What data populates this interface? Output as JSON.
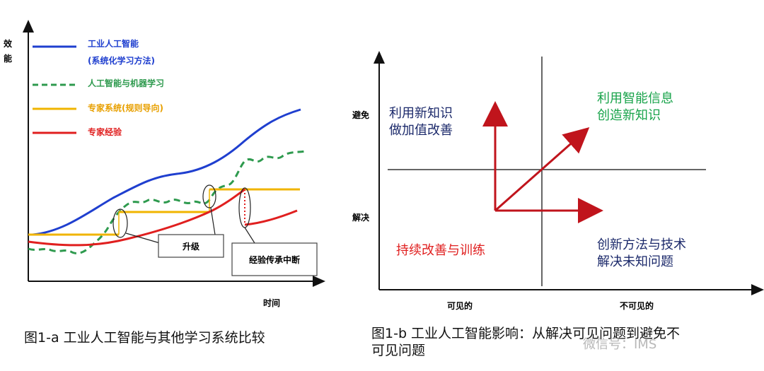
{
  "left_diagram": {
    "y_axis_label": [
      "效",
      "能"
    ],
    "x_axis_label": "时间",
    "legend": [
      {
        "label": "工业人工智能",
        "sublabel": "(系统化学习方法)",
        "color": "#1f3fcf",
        "style": "solid"
      },
      {
        "label": "人工智能与机器学习",
        "color": "#2e9a4e",
        "style": "dashed"
      },
      {
        "label": "专家系统(规则导向)",
        "color": "#f0b400",
        "style": "solid"
      },
      {
        "label": "专家经验",
        "color": "#e01f1f",
        "style": "solid"
      }
    ],
    "callouts": {
      "upgrade": "升级",
      "break": "经验传承中断"
    },
    "caption": "图1-a 工业人工智能与其他学习系统比较"
  },
  "right_diagram": {
    "y_labels": {
      "top": "避免",
      "bottom": "解决"
    },
    "x_labels": {
      "left": "可见的",
      "right": "不可见的"
    },
    "quadrants": {
      "top_left": {
        "lines": [
          "利用新知识",
          "做加值改善"
        ],
        "color": "#1c2a6b"
      },
      "top_right": {
        "lines": [
          "利用智能信息",
          "创造新知识"
        ],
        "color": "#18a34a"
      },
      "bottom_left": {
        "lines": [
          "持续改善与训练"
        ],
        "color": "#e01f1f"
      },
      "bottom_right": {
        "lines": [
          "创新方法与技术",
          "解决未知问题"
        ],
        "color": "#1c2a6b"
      }
    },
    "arrow_color": "#c0141c",
    "caption_lines": [
      "图1-b 工业人工智能影响：从解决可见问题到避免不",
      "可见问题"
    ]
  },
  "watermark": "微信号：IMS"
}
